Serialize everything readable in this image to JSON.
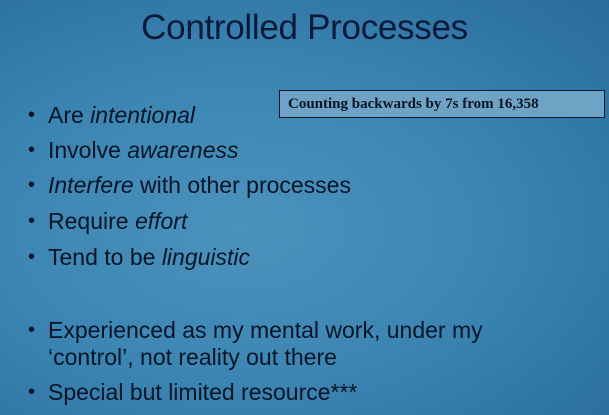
{
  "slide": {
    "title": "Controlled Processes",
    "callout": "Counting backwards by 7s from 16,358",
    "bullet_glyph": "•",
    "bullets": [
      {
        "pre": "Are ",
        "em": "intentional",
        "post": ""
      },
      {
        "pre": "Involve ",
        "em": "awareness",
        "post": ""
      },
      {
        "pre": "",
        "em": "Interfere",
        "post": " with other processes"
      },
      {
        "pre": "Require ",
        "em": "effort",
        "post": ""
      },
      {
        "pre": "Tend to be ",
        "em": "linguistic",
        "post": ""
      }
    ],
    "bullets2": [
      {
        "line1": "Experienced as my mental work, under my",
        "line2": "‘control’, not reality out there"
      },
      {
        "line1": "Special but limited resource***",
        "line2": ""
      }
    ]
  }
}
